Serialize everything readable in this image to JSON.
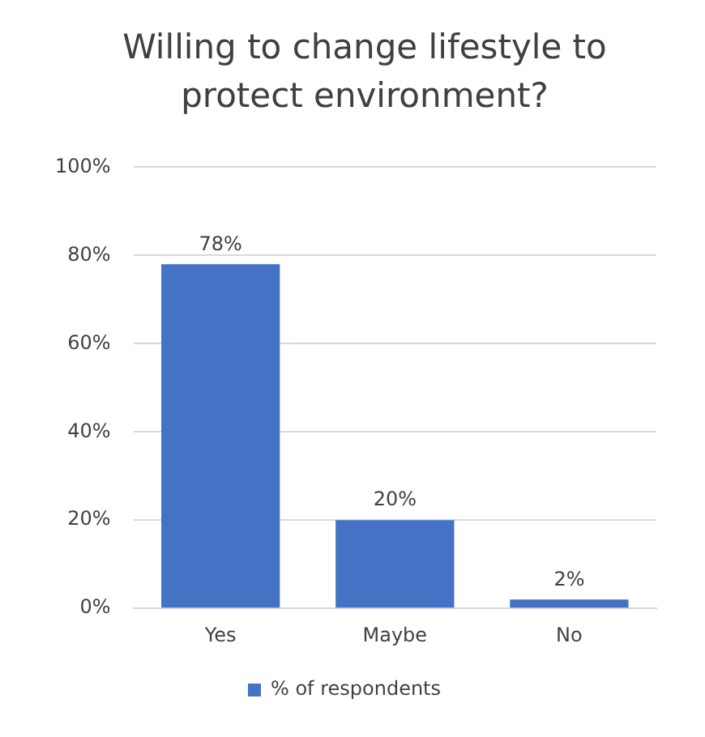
{
  "chart_data": {
    "type": "bar",
    "title": "Willing to change lifestyle to protect environment?",
    "categories": [
      "Yes",
      "Maybe",
      "No"
    ],
    "series": [
      {
        "name": "% of respondents",
        "color": "#4472c4",
        "values": [
          78,
          20,
          2
        ],
        "value_labels": [
          "78%",
          "20%",
          "2%"
        ]
      }
    ],
    "ylim": [
      0,
      100
    ],
    "yticks": [
      {
        "value": 0,
        "label": "0%"
      },
      {
        "value": 20,
        "label": "20%"
      },
      {
        "value": 40,
        "label": "40%"
      },
      {
        "value": 60,
        "label": "60%"
      },
      {
        "value": 80,
        "label": "80%"
      },
      {
        "value": 100,
        "label": "100%"
      }
    ],
    "grid": "y",
    "legend": "bottom"
  }
}
